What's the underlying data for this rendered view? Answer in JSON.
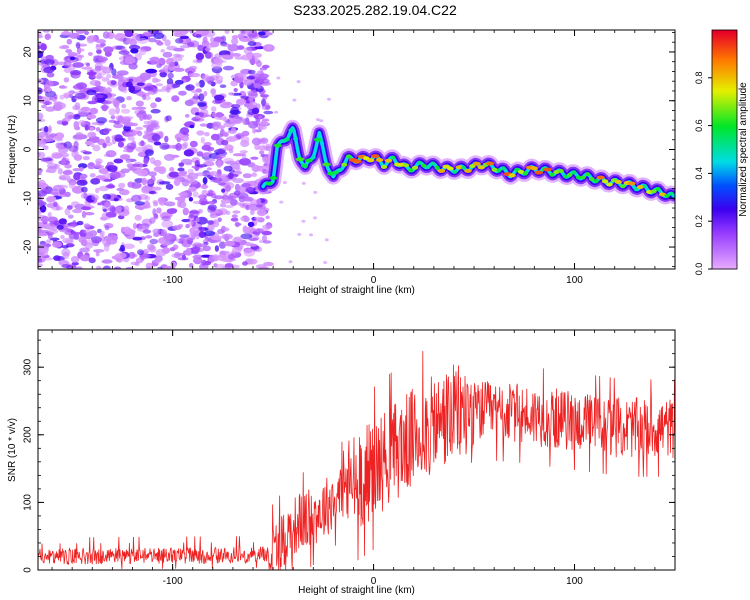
{
  "title": "S233.2025.282.19.04.C22",
  "chart_data": [
    {
      "type": "heatmap",
      "panel": "top",
      "xlabel": "Height of straight line (km)",
      "ylabel": "Frequency (Hz)",
      "xlim": [
        -167,
        150
      ],
      "ylim": [
        -24.5,
        24.5
      ],
      "xticks": [
        -100,
        0,
        100
      ],
      "yticks": [
        -20,
        -10,
        0,
        10,
        20
      ],
      "noise_region_x": [
        -167,
        -55
      ],
      "ridge": [
        {
          "x": -55,
          "y": -8
        },
        {
          "x": -50,
          "y": -6
        },
        {
          "x": -48,
          "y": 0
        },
        {
          "x": -45,
          "y": 2
        },
        {
          "x": -42,
          "y": 3
        },
        {
          "x": -40,
          "y": 4
        },
        {
          "x": -37,
          "y": -1
        },
        {
          "x": -34,
          "y": -4
        },
        {
          "x": -30,
          "y": -1
        },
        {
          "x": -27,
          "y": 3
        },
        {
          "x": -24,
          "y": -2
        },
        {
          "x": -20,
          "y": -6
        },
        {
          "x": -17,
          "y": -4
        },
        {
          "x": -13,
          "y": -2
        },
        {
          "x": -5,
          "y": -2
        },
        {
          "x": 0,
          "y": -1.5
        },
        {
          "x": 5,
          "y": -3
        },
        {
          "x": 10,
          "y": -2
        },
        {
          "x": 17,
          "y": -4
        },
        {
          "x": 25,
          "y": -3
        },
        {
          "x": 35,
          "y": -4
        },
        {
          "x": 45,
          "y": -4
        },
        {
          "x": 55,
          "y": -3
        },
        {
          "x": 62,
          "y": -4
        },
        {
          "x": 68,
          "y": -5
        },
        {
          "x": 80,
          "y": -4
        },
        {
          "x": 95,
          "y": -5
        },
        {
          "x": 105,
          "y": -5.5
        },
        {
          "x": 115,
          "y": -6.5
        },
        {
          "x": 125,
          "y": -7
        },
        {
          "x": 135,
          "y": -8
        },
        {
          "x": 145,
          "y": -9
        },
        {
          "x": 150,
          "y": -10
        }
      ]
    },
    {
      "type": "colorbar",
      "label": "Normalized spectral amplitude",
      "range": [
        0,
        1
      ],
      "ticks": [
        "0.0",
        "0.2",
        "0.4",
        "0.6",
        "0.8"
      ],
      "tick_values": [
        0,
        0.2,
        0.4,
        0.6,
        0.8
      ]
    },
    {
      "type": "line",
      "panel": "bottom",
      "color": "#ee2222",
      "xlabel": "Height of straight line (km)",
      "ylabel": "SNR (10 * v/v)",
      "xlim": [
        -167,
        150
      ],
      "ylim": [
        0,
        355
      ],
      "xticks": [
        -100,
        0,
        100
      ],
      "yticks": [
        0,
        100,
        200,
        300
      ],
      "envelope": [
        {
          "x": -167,
          "y": 20
        },
        {
          "x": -60,
          "y": 22
        },
        {
          "x": -50,
          "y": 25
        },
        {
          "x": -45,
          "y": 45
        },
        {
          "x": -38,
          "y": 70
        },
        {
          "x": -32,
          "y": 75
        },
        {
          "x": -25,
          "y": 90
        },
        {
          "x": -15,
          "y": 120
        },
        {
          "x": 0,
          "y": 150
        },
        {
          "x": 10,
          "y": 175
        },
        {
          "x": 25,
          "y": 205
        },
        {
          "x": 40,
          "y": 230
        },
        {
          "x": 55,
          "y": 235
        },
        {
          "x": 75,
          "y": 230
        },
        {
          "x": 100,
          "y": 220
        },
        {
          "x": 125,
          "y": 210
        },
        {
          "x": 150,
          "y": 210
        }
      ]
    }
  ]
}
